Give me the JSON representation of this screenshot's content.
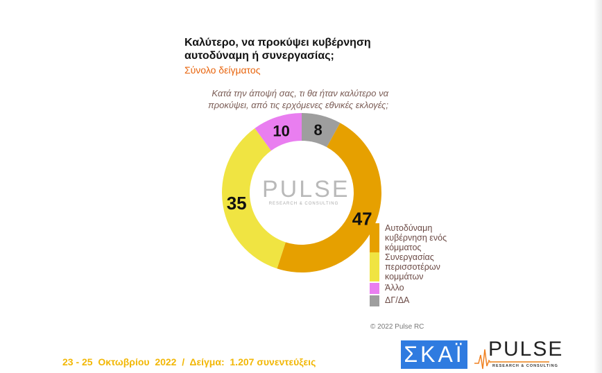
{
  "title": "Καλύτερο, να προκύψει κυβέρνηση αυτοδύναμη ή συνεργασίας;",
  "subtitle": "Σύνολο δείγματος",
  "question": "Κατά την άποψή σας, τι θα ήταν καλύτερο να προκύψει, από τις ερχόμενες εθνικές εκλογές;",
  "copyright": "© 2022 Pulse RC",
  "footer": "23 - 25  Οκτωβρίου  2022  /  Δείγμα:  1.207 συνεντεύξεις",
  "logos": {
    "skai": "ΣΚΑΪ",
    "pulse": "PULSE",
    "pulse_sub": "RESEARCH & CONSULTING"
  },
  "watermark": {
    "word": "PULSE",
    "sub": "RESEARCH & CONSULTING"
  },
  "chart_data": {
    "type": "pie",
    "donut": true,
    "start": "top",
    "direction": "clockwise",
    "categories": [
      "ΔΓ/ΔΑ",
      "Αυτοδύναμη κυβέρνηση ενός κόμματος",
      "Συνεργασίας περισσοτέρων κομμάτων",
      "Άλλο"
    ],
    "values": [
      8,
      47,
      35,
      10
    ],
    "colors": [
      "#9E9E9E",
      "#E6A000",
      "#F0E442",
      "#E97EF0"
    ],
    "legend": {
      "placement": "right",
      "entries": [
        {
          "label": "Αυτοδύναμη κυβέρνηση ενός κόμματος",
          "color": "#E6A000"
        },
        {
          "label": "Συνεργασίας περισσοτέρων κομμάτων",
          "color": "#F0E442"
        },
        {
          "label": "Άλλο",
          "color": "#E97EF0"
        },
        {
          "label": "ΔΓ/ΔΑ",
          "color": "#9E9E9E"
        }
      ]
    }
  }
}
